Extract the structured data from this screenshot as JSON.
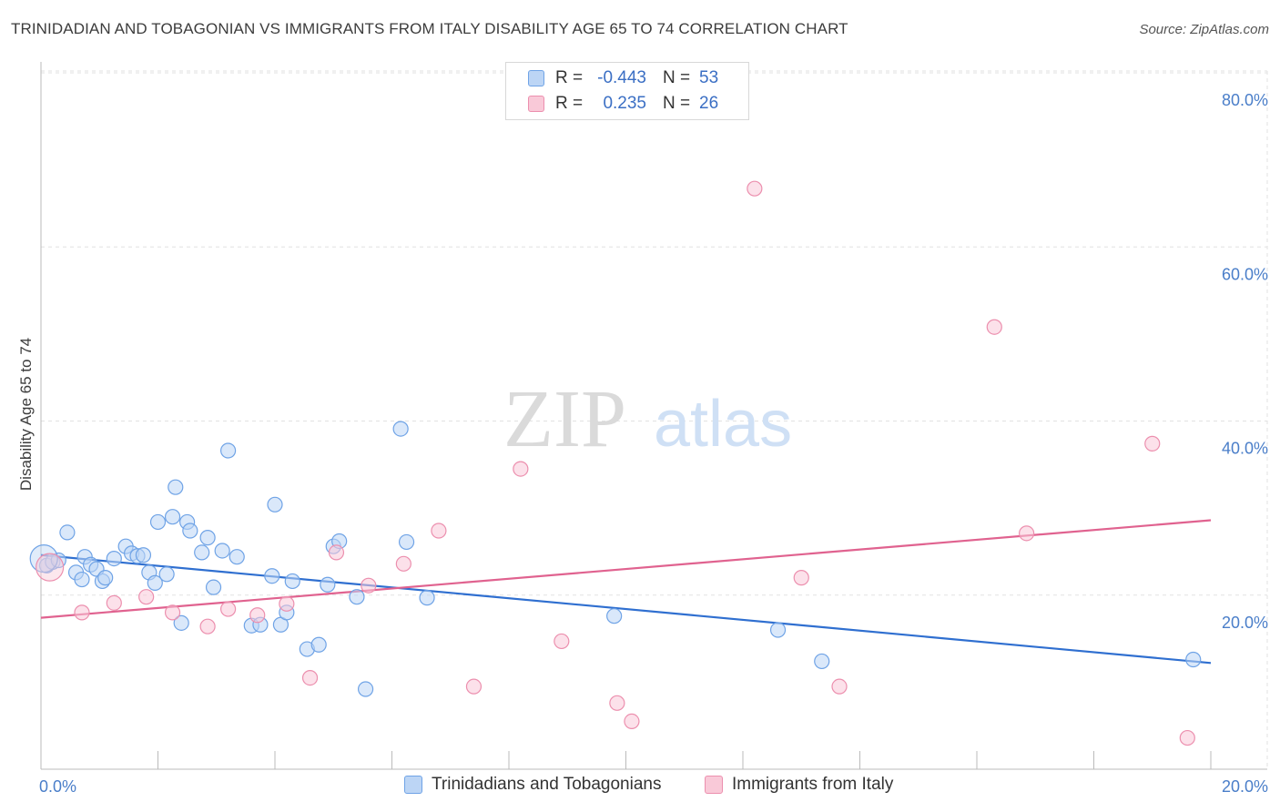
{
  "title": "TRINIDADIAN AND TOBAGONIAN VS IMMIGRANTS FROM ITALY DISABILITY AGE 65 TO 74 CORRELATION CHART",
  "source": "Source: ZipAtlas.com",
  "watermark": {
    "zip": "ZIP",
    "atlas": "atlas"
  },
  "legend": {
    "rows": [
      {
        "r_label": "R =",
        "r_value": "-0.443",
        "n_label": "N =",
        "n_value": "53",
        "color": "#6fa3e6",
        "fill": "#bcd5f5"
      },
      {
        "r_label": "R =",
        "r_value": "0.235",
        "n_label": "N =",
        "n_value": "26",
        "color": "#ec8fae",
        "fill": "#f9c9d8"
      }
    ]
  },
  "bottom_legend": [
    "Trinidadians and Tobagonians",
    "Immigrants from Italy"
  ],
  "chart_data": {
    "type": "scatter",
    "title": "TRINIDADIAN AND TOBAGONIAN VS IMMIGRANTS FROM ITALY DISABILITY AGE 65 TO 74 CORRELATION CHART",
    "xlabel": "",
    "ylabel": "Disability Age 65 to 74",
    "xlim": [
      0,
      20
    ],
    "ylim": [
      0,
      80
    ],
    "x_tick_labels": [
      "0.0%",
      "20.0%"
    ],
    "y_ticks": [
      20,
      40,
      60,
      80
    ],
    "y_tick_labels": [
      "20.0%",
      "40.0%",
      "60.0%",
      "80.0%"
    ],
    "grid": true,
    "series": [
      {
        "name": "Trinidadians and Tobagonians",
        "color": "#6fa3e6",
        "fill": "#bcd5f5",
        "line_color": "#2f6fd0",
        "trend": {
          "x": [
            0,
            20
          ],
          "y": [
            24.6,
            12.2
          ]
        },
        "points": [
          [
            0.1,
            23.4
          ],
          [
            0.2,
            23.8
          ],
          [
            0.3,
            24.0
          ],
          [
            0.45,
            27.2
          ],
          [
            0.6,
            22.6
          ],
          [
            0.7,
            21.8
          ],
          [
            0.75,
            24.4
          ],
          [
            0.85,
            23.5
          ],
          [
            0.95,
            23.0
          ],
          [
            1.05,
            21.6
          ],
          [
            1.1,
            22.0
          ],
          [
            1.25,
            24.2
          ],
          [
            1.45,
            25.6
          ],
          [
            1.55,
            24.8
          ],
          [
            1.65,
            24.5
          ],
          [
            1.75,
            24.6
          ],
          [
            1.85,
            22.6
          ],
          [
            1.95,
            21.4
          ],
          [
            2.0,
            28.4
          ],
          [
            2.15,
            22.4
          ],
          [
            2.25,
            29.0
          ],
          [
            2.3,
            32.4
          ],
          [
            2.4,
            16.8
          ],
          [
            2.5,
            28.4
          ],
          [
            2.55,
            27.4
          ],
          [
            2.75,
            24.9
          ],
          [
            2.85,
            26.6
          ],
          [
            2.95,
            20.9
          ],
          [
            3.1,
            25.1
          ],
          [
            3.2,
            36.6
          ],
          [
            3.35,
            24.4
          ],
          [
            3.6,
            16.5
          ],
          [
            3.75,
            16.6
          ],
          [
            3.95,
            22.2
          ],
          [
            4.0,
            30.4
          ],
          [
            4.1,
            16.6
          ],
          [
            4.2,
            18.0
          ],
          [
            4.3,
            21.6
          ],
          [
            4.55,
            13.8
          ],
          [
            4.75,
            14.3
          ],
          [
            4.9,
            21.2
          ],
          [
            5.0,
            25.6
          ],
          [
            5.1,
            26.2
          ],
          [
            5.4,
            19.8
          ],
          [
            5.55,
            9.2
          ],
          [
            6.15,
            39.1
          ],
          [
            6.25,
            26.1
          ],
          [
            6.6,
            19.7
          ],
          [
            9.8,
            17.6
          ],
          [
            12.6,
            16.0
          ],
          [
            13.35,
            12.4
          ],
          [
            19.7,
            12.6
          ],
          [
            0.05,
            24.2
          ]
        ]
      },
      {
        "name": "Immigrants from Italy",
        "color": "#ec8fae",
        "fill": "#f9c9d8",
        "line_color": "#e0628f",
        "trend": {
          "x": [
            0,
            20
          ],
          "y": [
            17.4,
            28.6
          ]
        },
        "points": [
          [
            0.15,
            23.2
          ],
          [
            0.7,
            18.0
          ],
          [
            1.25,
            19.1
          ],
          [
            1.8,
            19.8
          ],
          [
            2.25,
            18.0
          ],
          [
            2.85,
            16.4
          ],
          [
            3.2,
            18.4
          ],
          [
            3.7,
            17.7
          ],
          [
            4.2,
            19.0
          ],
          [
            4.6,
            10.5
          ],
          [
            5.05,
            24.9
          ],
          [
            5.6,
            21.1
          ],
          [
            6.2,
            23.6
          ],
          [
            6.8,
            27.4
          ],
          [
            8.2,
            34.5
          ],
          [
            8.9,
            14.7
          ],
          [
            7.4,
            9.5
          ],
          [
            9.85,
            7.6
          ],
          [
            10.1,
            5.5
          ],
          [
            12.2,
            66.7
          ],
          [
            13.0,
            22.0
          ],
          [
            13.65,
            9.5
          ],
          [
            16.3,
            50.8
          ],
          [
            16.85,
            27.1
          ],
          [
            19.0,
            37.4
          ],
          [
            19.6,
            3.6
          ]
        ]
      }
    ]
  }
}
